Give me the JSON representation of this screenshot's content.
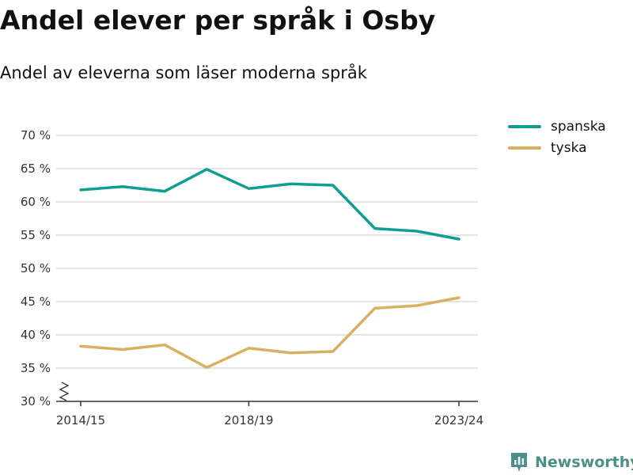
{
  "title": "Andel elever per språk i Osby",
  "subtitle": "Andel av eleverna som läser moderna språk",
  "brand": {
    "name": "Newsworthy",
    "icon": "bar-chart-flag-icon",
    "color": "#4a8f8a"
  },
  "chart_data": {
    "type": "line",
    "ylim": [
      30,
      70
    ],
    "yticks": [
      30,
      35,
      40,
      45,
      50,
      55,
      60,
      65,
      70
    ],
    "ytick_labels": [
      "30 %",
      "35 %",
      "40 %",
      "45 %",
      "50 %",
      "55 %",
      "60 %",
      "65 %",
      "70 %"
    ],
    "x": [
      "2014/15",
      "2015/16",
      "2016/17",
      "2017/18",
      "2018/19",
      "2019/20",
      "2020/21",
      "2021/22",
      "2022/23",
      "2023/24"
    ],
    "xtick_labels": [
      "2014/15",
      "2018/19",
      "2023/24"
    ],
    "grid": true,
    "legend_position": "top-right",
    "series": [
      {
        "name": "spanska",
        "color": "#0e9e92",
        "values": [
          61.8,
          62.3,
          61.6,
          64.9,
          62.0,
          62.7,
          62.5,
          56.0,
          55.6,
          54.4
        ]
      },
      {
        "name": "tyska",
        "color": "#d8b060",
        "values": [
          38.3,
          37.8,
          38.5,
          35.1,
          38.0,
          37.3,
          37.5,
          44.0,
          44.4,
          45.6
        ]
      }
    ]
  }
}
